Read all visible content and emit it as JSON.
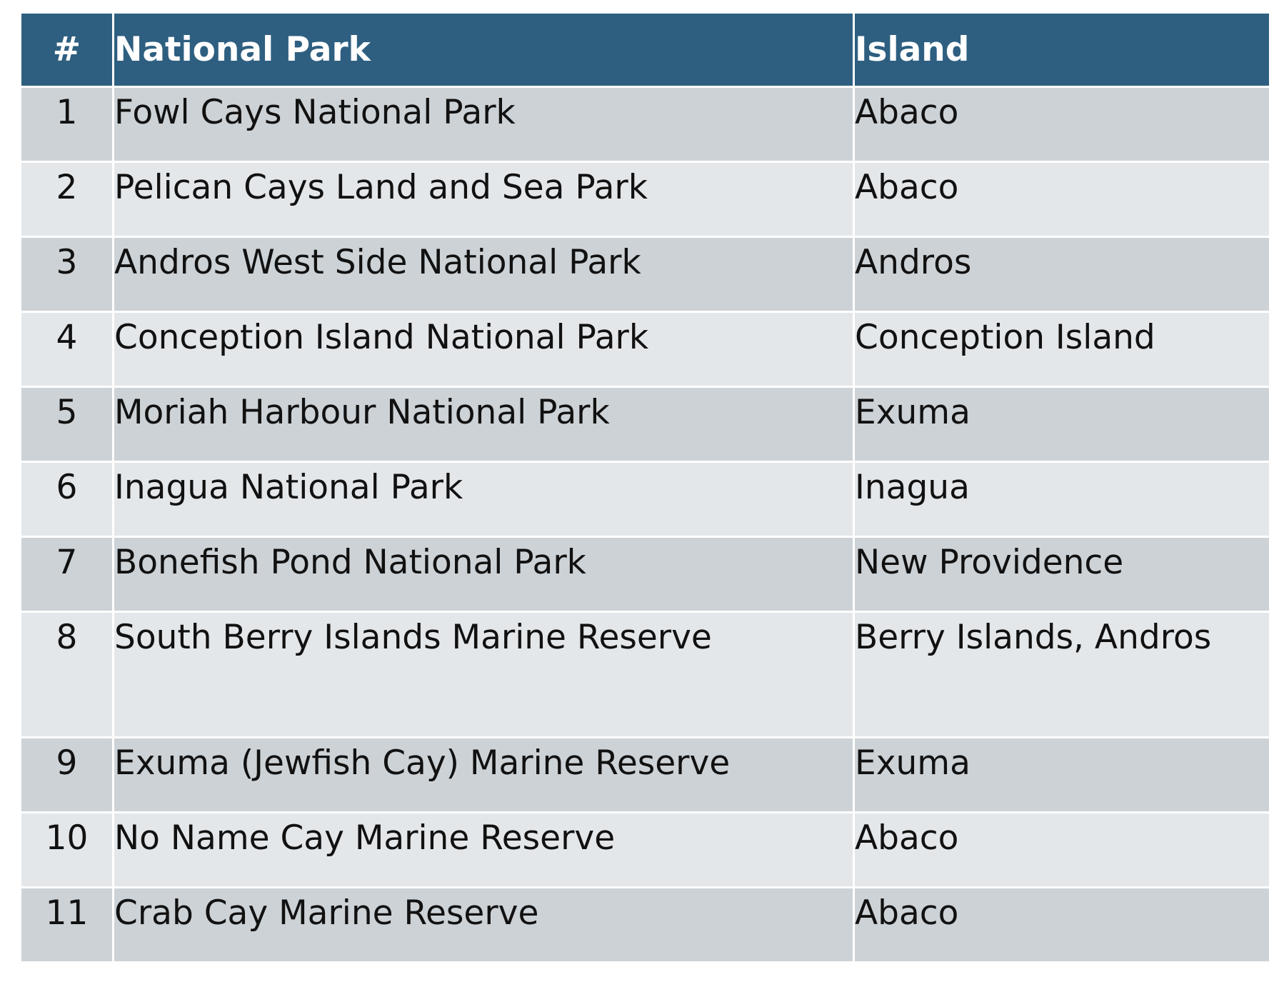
{
  "table": {
    "headers": {
      "num": "#",
      "park": "National Park",
      "island": "Island"
    },
    "rows": [
      {
        "num": "1",
        "park": "Fowl Cays National Park",
        "island": "Abaco"
      },
      {
        "num": "2",
        "park": "Pelican Cays Land and Sea Park",
        "island": "Abaco"
      },
      {
        "num": "3",
        "park": "Andros West Side National Park",
        "island": "Andros"
      },
      {
        "num": "4",
        "park": "Conception Island National Park",
        "island": "Conception Island"
      },
      {
        "num": "5",
        "park": "Moriah Harbour National Park",
        "island": "Exuma"
      },
      {
        "num": "6",
        "park": "Inagua National Park",
        "island": "Inagua"
      },
      {
        "num": "7",
        "park": "Bonefish Pond National Park",
        "island": "New Providence"
      },
      {
        "num": "8",
        "park": "South Berry Islands Marine Reserve",
        "island": "Berry Islands, Andros"
      },
      {
        "num": "9",
        "park": "Exuma (Jewfish Cay) Marine Reserve",
        "island": "Exuma"
      },
      {
        "num": "10",
        "park": "No Name Cay Marine Reserve",
        "island": "Abaco"
      },
      {
        "num": "11",
        "park": "Crab Cay Marine Reserve",
        "island": "Abaco"
      }
    ]
  },
  "colors": {
    "header_bg": "#2e5f80",
    "row_odd_bg": "#cdd2d6",
    "row_even_bg": "#e4e7ea"
  }
}
